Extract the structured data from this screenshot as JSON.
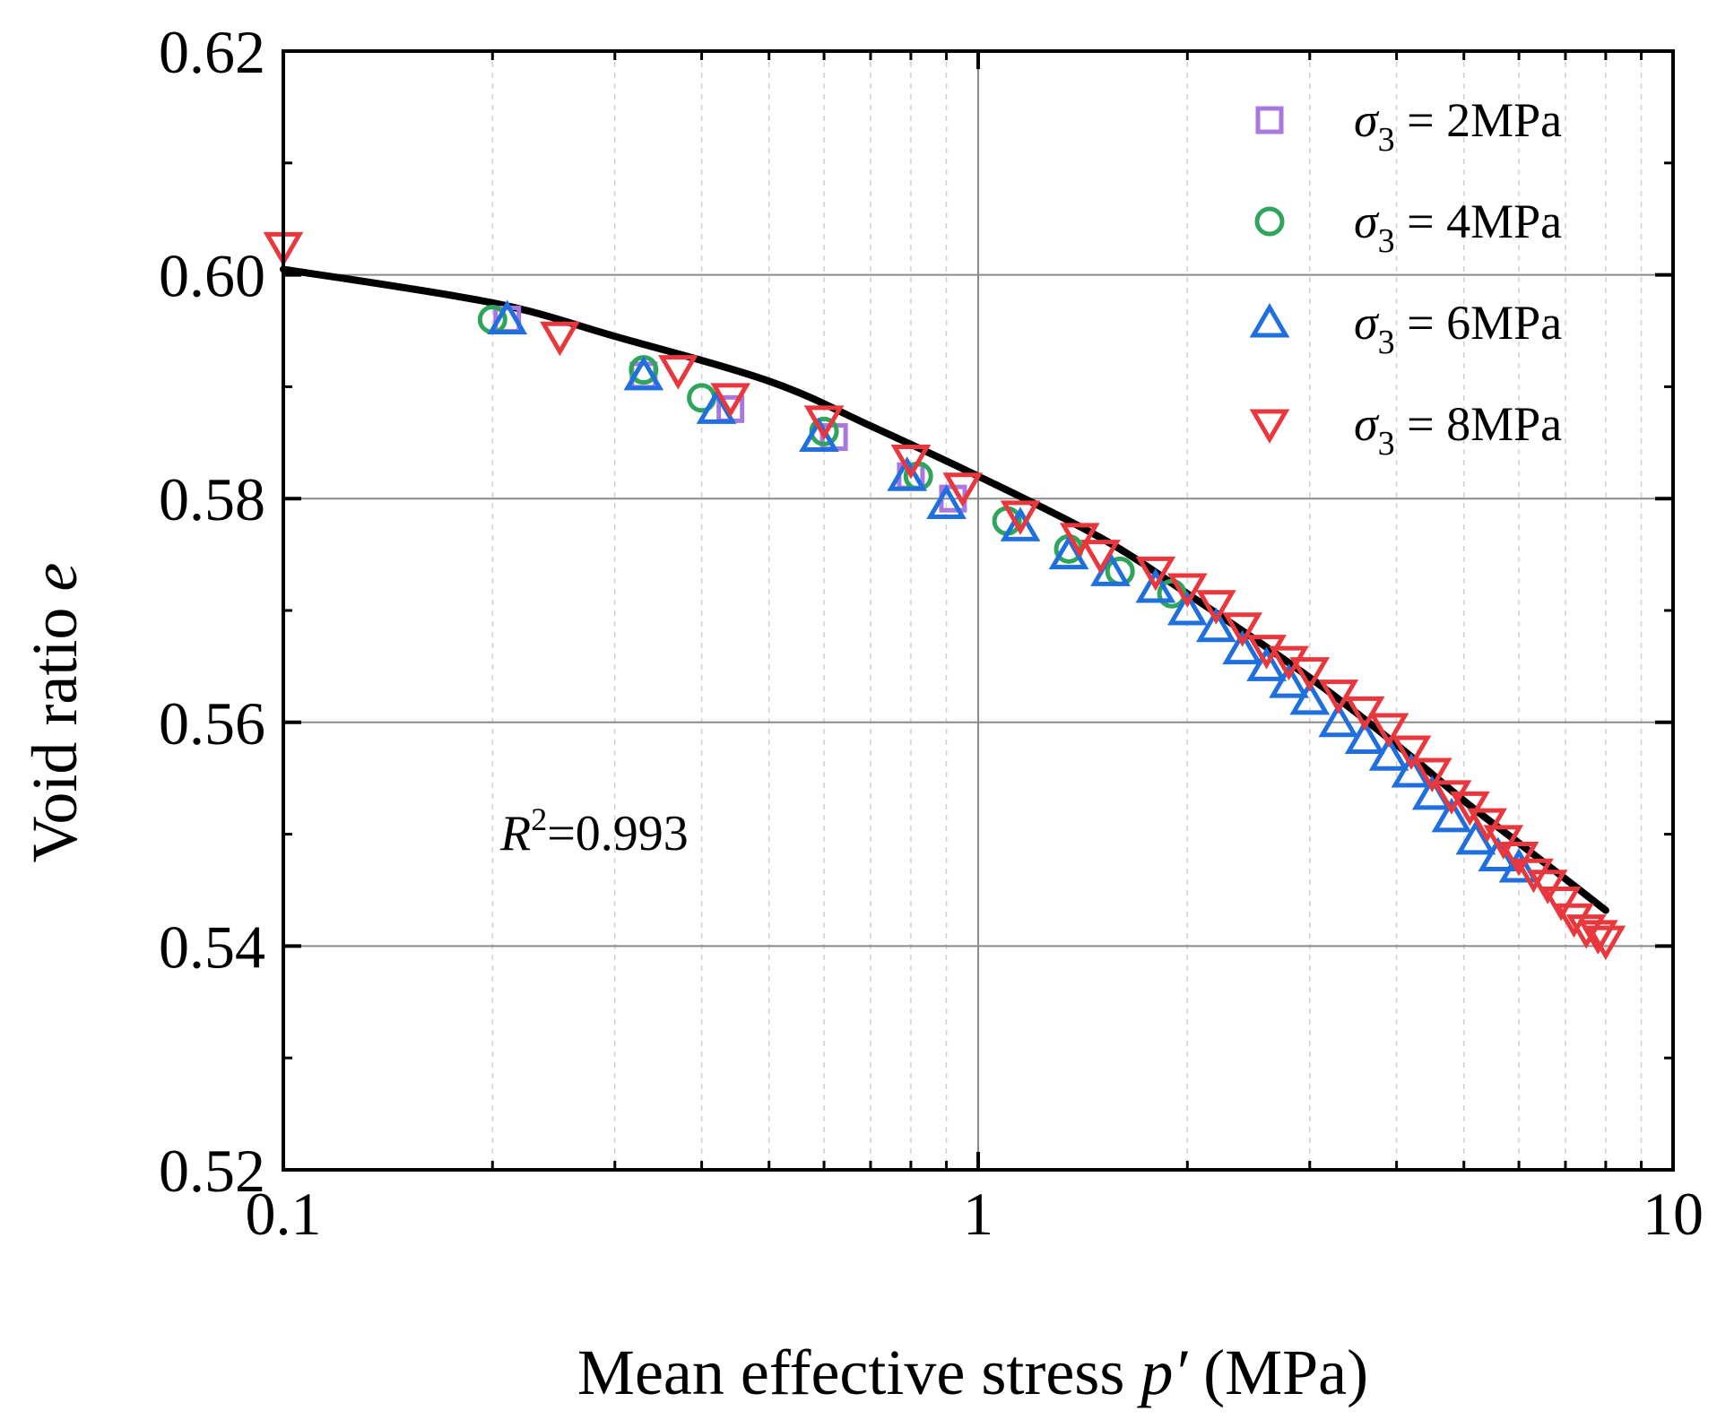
{
  "chart_data": {
    "type": "scatter",
    "title": "",
    "xlabel": {
      "prefix": "Mean effective stress ",
      "var": "p′",
      "suffix": " (MPa)"
    },
    "ylabel": {
      "prefix": "Void ratio ",
      "var": "e"
    },
    "xscale": "log",
    "xlim": [
      0.1,
      10
    ],
    "ylim": [
      0.52,
      0.62
    ],
    "xticks": [
      0.1,
      1,
      10
    ],
    "xtick_labels": [
      "0.1",
      "1",
      "10"
    ],
    "yticks": [
      0.52,
      0.54,
      0.56,
      0.58,
      0.6,
      0.62
    ],
    "ytick_labels": [
      "0.52",
      "0.54",
      "0.56",
      "0.58",
      "0.60",
      "0.62"
    ],
    "grid": true,
    "legend_position": "top-right",
    "annotation": {
      "var": "R",
      "sup": "2",
      "text": "=0.993"
    },
    "fit_curve": {
      "name": "fit",
      "color": "#000000",
      "x": [
        0.1,
        0.2,
        0.3,
        0.5,
        0.7,
        1.0,
        1.5,
        2.0,
        3.0,
        4.0,
        5.0,
        6.0,
        7.0,
        8.0
      ],
      "y": [
        0.6005,
        0.5975,
        0.5945,
        0.5905,
        0.5865,
        0.582,
        0.5765,
        0.5715,
        0.564,
        0.558,
        0.553,
        0.5492,
        0.546,
        0.5432
      ]
    },
    "series": [
      {
        "name": "σ₃ = 2MPa",
        "legend_var": "σ",
        "legend_sub": "3",
        "legend_rest": " = 2MPa",
        "marker": "square",
        "color": "#a877e0",
        "x": [
          0.21,
          0.33,
          0.44,
          0.62,
          0.8,
          0.92
        ],
        "y": [
          0.596,
          0.591,
          0.588,
          0.5855,
          0.582,
          0.58
        ]
      },
      {
        "name": "σ₃ = 4MPa",
        "legend_var": "σ",
        "legend_sub": "3",
        "legend_rest": " = 4MPa",
        "marker": "circle",
        "color": "#2ea55a",
        "x": [
          0.2,
          0.33,
          0.4,
          0.6,
          0.82,
          1.1,
          1.35,
          1.6,
          1.9
        ],
        "y": [
          0.596,
          0.5915,
          0.589,
          0.586,
          0.582,
          0.578,
          0.5755,
          0.5735,
          0.5715
        ]
      },
      {
        "name": "σ₃ = 6MPa",
        "legend_var": "σ",
        "legend_sub": "3",
        "legend_rest": " = 6MPa",
        "marker": "triangle-up",
        "color": "#1f6fde",
        "x": [
          0.21,
          0.33,
          0.42,
          0.59,
          0.79,
          0.9,
          1.15,
          1.35,
          1.55,
          1.8,
          2.0,
          2.2,
          2.4,
          2.6,
          2.8,
          3.0,
          3.3,
          3.6,
          3.9,
          4.2,
          4.5,
          4.8,
          5.2,
          5.6,
          6.0
        ],
        "y": [
          0.596,
          0.591,
          0.588,
          0.5855,
          0.582,
          0.5795,
          0.5775,
          0.575,
          0.5735,
          0.572,
          0.57,
          0.5685,
          0.5665,
          0.565,
          0.5635,
          0.562,
          0.56,
          0.5585,
          0.557,
          0.5555,
          0.5535,
          0.5515,
          0.5495,
          0.548,
          0.547
        ]
      },
      {
        "name": "σ₃ = 8MPa",
        "legend_var": "σ",
        "legend_sub": "3",
        "legend_rest": " = 8MPa",
        "marker": "triangle-down",
        "color": "#e8383d",
        "x": [
          0.1,
          0.25,
          0.37,
          0.44,
          0.6,
          0.8,
          0.95,
          1.15,
          1.4,
          1.5,
          1.8,
          2.0,
          2.2,
          2.4,
          2.6,
          2.8,
          3.0,
          3.3,
          3.6,
          3.9,
          4.2,
          4.5,
          4.8,
          5.1,
          5.4,
          5.7,
          6.0,
          6.3,
          6.6,
          6.9,
          7.2,
          7.5,
          7.8,
          8.0
        ],
        "y": [
          0.6025,
          0.5945,
          0.5915,
          0.589,
          0.587,
          0.5835,
          0.581,
          0.5785,
          0.5765,
          0.575,
          0.5735,
          0.572,
          0.5705,
          0.5685,
          0.5665,
          0.5655,
          0.5645,
          0.5625,
          0.561,
          0.5595,
          0.5575,
          0.5555,
          0.5535,
          0.5525,
          0.551,
          0.5495,
          0.548,
          0.5465,
          0.5455,
          0.544,
          0.5425,
          0.5415,
          0.541,
          0.5405
        ]
      }
    ]
  }
}
